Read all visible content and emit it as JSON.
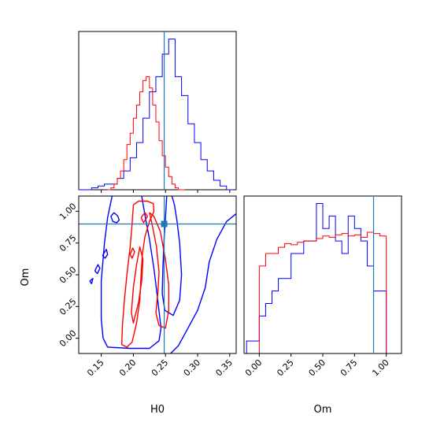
{
  "chart_data": {
    "type": "corner",
    "parameters": [
      "H0",
      "Om"
    ],
    "truths": {
      "H0": 0.248,
      "Om": 0.9
    },
    "colors": {
      "blue": "#0000ff",
      "red": "#ff0000",
      "truth": "#1f77b4"
    },
    "panels": [
      {
        "id": "hist-H0",
        "type": "histogram",
        "xlabel": "",
        "xlim": [
          0.115,
          0.36
        ],
        "series": [
          {
            "color": "blue",
            "bin_edges": [
              0.115,
              0.125,
              0.135,
              0.145,
              0.155,
              0.165,
              0.175,
              0.185,
              0.195,
              0.205,
              0.215,
              0.225,
              0.235,
              0.245,
              0.255,
              0.265,
              0.275,
              0.285,
              0.295,
              0.305,
              0.315,
              0.325,
              0.335,
              0.345,
              0.355
            ],
            "counts": [
              0,
              0,
              1,
              2,
              3,
              3,
              6,
              10,
              17,
              25,
              38,
              52,
              60,
              72,
              80,
              60,
              50,
              35,
              25,
              16,
              10,
              5,
              2,
              0
            ]
          },
          {
            "color": "red",
            "bin_edges": [
              0.16,
              0.165,
              0.17,
              0.175,
              0.18,
              0.185,
              0.19,
              0.195,
              0.2,
              0.205,
              0.21,
              0.215,
              0.22,
              0.225,
              0.23,
              0.235,
              0.24,
              0.245,
              0.25,
              0.255,
              0.26,
              0.265,
              0.27,
              0.275,
              0.28
            ],
            "counts": [
              0,
              1,
              3,
              6,
              10,
              16,
              24,
              30,
              38,
              45,
              52,
              58,
              60,
              54,
              45,
              36,
              26,
              18,
              12,
              7,
              3,
              1,
              0,
              0
            ]
          }
        ]
      },
      {
        "id": "contour-H0-Om",
        "type": "contour",
        "xlabel": "H0",
        "ylabel": "Om",
        "xlim": [
          0.115,
          0.36
        ],
        "ylim": [
          -0.12,
          1.12
        ],
        "xticks": [
          "0.15",
          "0.20",
          "0.25",
          "0.30",
          "0.35"
        ],
        "xtick_values": [
          0.15,
          0.2,
          0.25,
          0.3,
          0.35
        ],
        "yticks": [
          "0.00",
          "0.25",
          "0.50",
          "0.75",
          "1.00"
        ],
        "ytick_values": [
          0.0,
          0.25,
          0.5,
          0.75,
          1.0
        ],
        "contours": [
          {
            "color": "blue",
            "points": [
              [
                0.167,
                1.12
              ],
              [
                0.16,
                0.95
              ],
              [
                0.155,
                0.75
              ],
              [
                0.15,
                0.45
              ],
              [
                0.15,
                0.15
              ],
              [
                0.153,
                0.0
              ],
              [
                0.16,
                -0.07
              ],
              [
                0.195,
                -0.08
              ],
              [
                0.225,
                -0.08
              ],
              [
                0.24,
                -0.02
              ],
              [
                0.243,
                0.08
              ],
              [
                0.238,
                0.3
              ],
              [
                0.232,
                0.55
              ],
              [
                0.225,
                0.78
              ],
              [
                0.218,
                0.97
              ],
              [
                0.213,
                1.12
              ]
            ]
          },
          {
            "color": "blue",
            "points": [
              [
                0.252,
                1.12
              ],
              [
                0.25,
                0.95
              ],
              [
                0.248,
                0.8
              ],
              [
                0.246,
                0.55
              ],
              [
                0.245,
                0.35
              ],
              [
                0.249,
                0.22
              ],
              [
                0.262,
                0.18
              ],
              [
                0.272,
                0.3
              ],
              [
                0.275,
                0.5
              ],
              [
                0.272,
                0.75
              ],
              [
                0.268,
                0.92
              ],
              [
                0.264,
                1.05
              ],
              [
                0.26,
                1.12
              ]
            ]
          },
          {
            "color": "blue",
            "points": [
              [
                0.36,
                0.98
              ],
              [
                0.345,
                0.92
              ],
              [
                0.33,
                0.78
              ],
              [
                0.318,
                0.6
              ],
              [
                0.312,
                0.4
              ],
              [
                0.3,
                0.22
              ],
              [
                0.285,
                0.08
              ],
              [
                0.27,
                -0.06
              ],
              [
                0.258,
                -0.12
              ]
            ]
          },
          {
            "color": "blue",
            "points": [
              [
                0.17,
                0.99
              ],
              [
                0.176,
                0.96
              ],
              [
                0.178,
                0.93
              ],
              [
                0.174,
                0.91
              ],
              [
                0.168,
                0.92
              ],
              [
                0.165,
                0.96
              ],
              [
                0.17,
                0.99
              ]
            ]
          },
          {
            "color": "blue",
            "points": [
              [
                0.152,
                0.65
              ],
              [
                0.158,
                0.7
              ],
              [
                0.16,
                0.66
              ],
              [
                0.156,
                0.63
              ],
              [
                0.152,
                0.65
              ]
            ]
          },
          {
            "color": "blue",
            "points": [
              [
                0.14,
                0.53
              ],
              [
                0.145,
                0.58
              ],
              [
                0.148,
                0.55
              ],
              [
                0.144,
                0.51
              ],
              [
                0.14,
                0.53
              ]
            ]
          },
          {
            "color": "blue",
            "points": [
              [
                0.132,
                0.45
              ],
              [
                0.137,
                0.47
              ],
              [
                0.135,
                0.43
              ],
              [
                0.132,
                0.45
              ]
            ]
          },
          {
            "color": "red",
            "points": [
              [
                0.2,
                1.05
              ],
              [
                0.208,
                1.08
              ],
              [
                0.222,
                1.08
              ],
              [
                0.231,
                1.06
              ],
              [
                0.232,
                1.0
              ],
              [
                0.225,
                0.92
              ],
              [
                0.218,
                0.8
              ],
              [
                0.214,
                0.66
              ],
              [
                0.212,
                0.5
              ],
              [
                0.21,
                0.3
              ],
              [
                0.205,
                0.12
              ],
              [
                0.198,
                -0.03
              ],
              [
                0.19,
                -0.07
              ],
              [
                0.182,
                -0.05
              ],
              [
                0.183,
                0.1
              ],
              [
                0.186,
                0.3
              ],
              [
                0.19,
                0.5
              ],
              [
                0.195,
                0.72
              ],
              [
                0.198,
                0.9
              ],
              [
                0.2,
                1.05
              ]
            ]
          },
          {
            "color": "red",
            "points": [
              [
                0.225,
                0.99
              ],
              [
                0.232,
                0.96
              ],
              [
                0.242,
                0.84
              ],
              [
                0.25,
                0.62
              ],
              [
                0.255,
                0.42
              ],
              [
                0.255,
                0.22
              ],
              [
                0.25,
                0.08
              ],
              [
                0.24,
                0.1
              ],
              [
                0.235,
                0.2
              ],
              [
                0.238,
                0.35
              ],
              [
                0.24,
                0.52
              ],
              [
                0.236,
                0.72
              ],
              [
                0.229,
                0.9
              ],
              [
                0.225,
                0.99
              ]
            ]
          },
          {
            "color": "red",
            "points": [
              [
                0.197,
                0.2
              ],
              [
                0.2,
                0.4
              ],
              [
                0.205,
                0.58
              ],
              [
                0.21,
                0.72
              ],
              [
                0.215,
                0.62
              ],
              [
                0.213,
                0.45
              ],
              [
                0.208,
                0.28
              ],
              [
                0.2,
                0.12
              ],
              [
                0.197,
                0.2
              ]
            ]
          },
          {
            "color": "red",
            "points": [
              [
                0.212,
                0.95
              ],
              [
                0.218,
                0.99
              ],
              [
                0.222,
                0.96
              ],
              [
                0.216,
                0.91
              ],
              [
                0.212,
                0.95
              ]
            ]
          },
          {
            "color": "red",
            "points": [
              [
                0.195,
                0.66
              ],
              [
                0.199,
                0.71
              ],
              [
                0.202,
                0.68
              ],
              [
                0.198,
                0.63
              ],
              [
                0.195,
                0.66
              ]
            ]
          }
        ]
      },
      {
        "id": "hist-Om",
        "type": "histogram",
        "xlabel": "Om",
        "xlim": [
          -0.12,
          1.12
        ],
        "xticks": [
          "0.00",
          "0.25",
          "0.50",
          "0.75",
          "1.00"
        ],
        "xtick_values": [
          0.0,
          0.25,
          0.5,
          0.75,
          1.0
        ],
        "series": [
          {
            "color": "blue",
            "bin_edges": [
              -0.1,
              -0.05,
              0.0,
              0.05,
              0.1,
              0.15,
              0.2,
              0.25,
              0.3,
              0.35,
              0.4,
              0.45,
              0.5,
              0.55,
              0.6,
              0.65,
              0.7,
              0.75,
              0.8,
              0.85,
              0.9,
              0.95,
              1.0,
              1.05,
              1.1
            ],
            "counts": [
              1,
              1,
              3,
              4,
              5,
              6,
              6,
              8,
              8,
              9,
              9,
              12,
              10,
              11,
              9,
              8,
              11,
              10,
              9,
              7,
              5,
              5,
              0,
              0
            ]
          },
          {
            "color": "red",
            "bin_edges": [
              0.0,
              0.05,
              0.1,
              0.15,
              0.2,
              0.25,
              0.3,
              0.35,
              0.4,
              0.45,
              0.5,
              0.55,
              0.6,
              0.65,
              0.7,
              0.75,
              0.8,
              0.85,
              0.9,
              0.95,
              1.0
            ],
            "counts": [
              7,
              8,
              8,
              8.5,
              8.8,
              8.7,
              8.9,
              9,
              9,
              9.2,
              9.4,
              9.3,
              9.5,
              9.6,
              9.4,
              9.5,
              9.3,
              9.7,
              9.6,
              9.4
            ]
          }
        ]
      }
    ]
  }
}
